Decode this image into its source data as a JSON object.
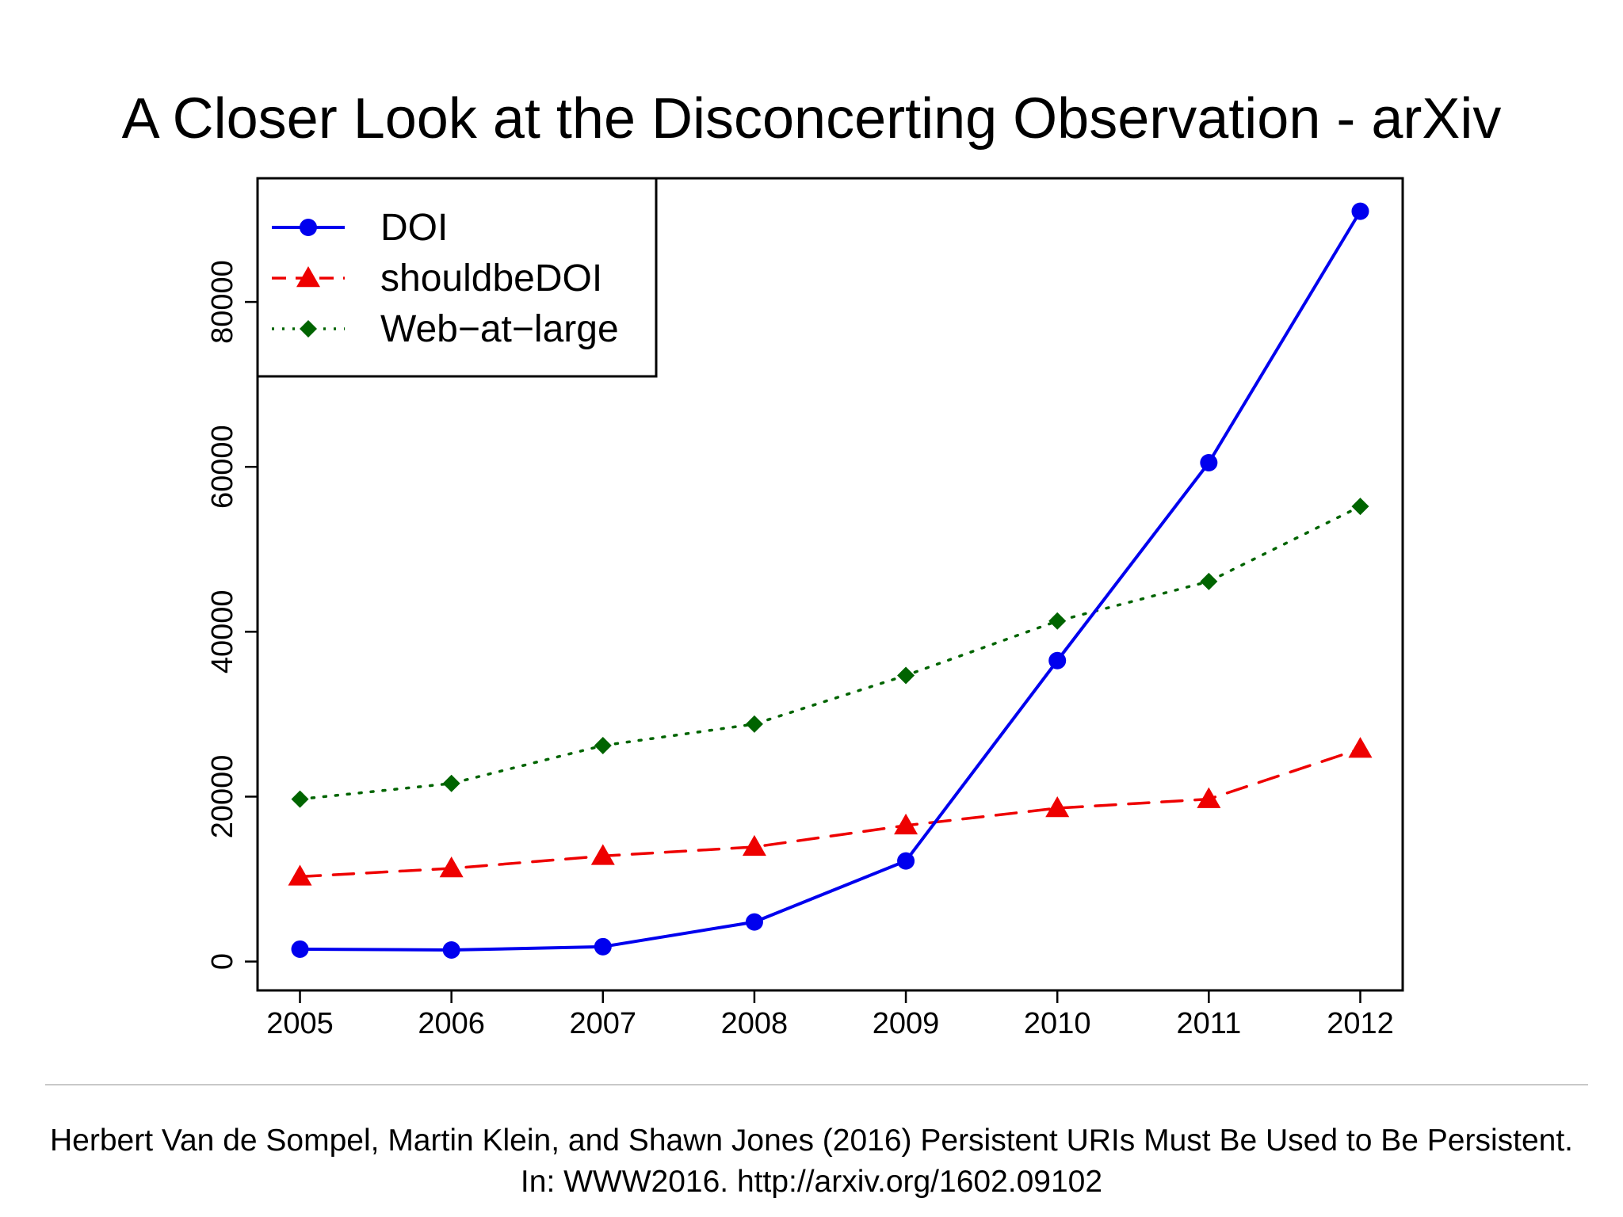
{
  "slide": {
    "title": "A Closer Look at the Disconcerting Observation - arXiv",
    "citation_line1": "Herbert Van de Sompel, Martin Klein, and Shawn Jones (2016) Persistent URIs Must Be Used to Be Persistent.",
    "citation_line2": "In: WWW2016. http://arxiv.org/1602.09102"
  },
  "chart_data": {
    "type": "line",
    "title": "",
    "xlabel": "",
    "ylabel": "",
    "x": [
      2005,
      2006,
      2007,
      2008,
      2009,
      2010,
      2011,
      2012
    ],
    "x_tick_labels": [
      "2005",
      "2006",
      "2007",
      "2008",
      "2009",
      "2010",
      "2011",
      "2012"
    ],
    "y_ticks": [
      0,
      20000,
      40000,
      60000,
      80000
    ],
    "y_tick_labels": [
      "0",
      "20000",
      "40000",
      "60000",
      "80000"
    ],
    "ylim": [
      -3500,
      95000
    ],
    "xlim": [
      2004.72,
      2012.28
    ],
    "grid": false,
    "legend_position": "top-left",
    "series": [
      {
        "name": "DOI",
        "color": "#0000ee",
        "line": "solid",
        "marker": "circle",
        "values": [
          1500,
          1400,
          1800,
          4800,
          12200,
          36500,
          60500,
          91000
        ]
      },
      {
        "name": "shouldbeDOI",
        "color": "#ee0000",
        "line": "dashed",
        "marker": "triangle",
        "values": [
          10300,
          11300,
          12800,
          13900,
          16500,
          18600,
          19700,
          25800
        ]
      },
      {
        "name": "Web−at−large",
        "color": "#006400",
        "line": "dotted",
        "marker": "diamond",
        "values": [
          19700,
          21600,
          26200,
          28800,
          34700,
          41300,
          46100,
          55200
        ]
      }
    ]
  }
}
